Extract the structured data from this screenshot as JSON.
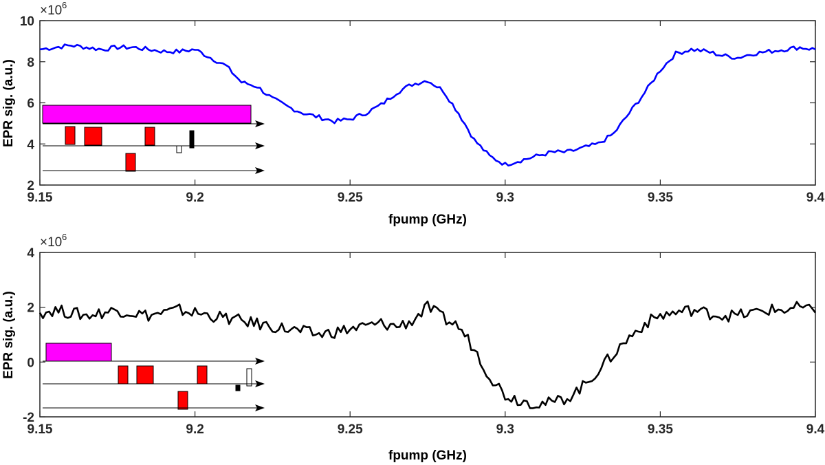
{
  "chart_data": [
    {
      "type": "line",
      "xlabel": "fpump (GHz)",
      "ylabel": "EPR sig. (a.u.)",
      "exponent_label": "×10",
      "exponent_power": "6",
      "xlim": [
        9.15,
        9.4
      ],
      "ylim": [
        2,
        10
      ],
      "xticks": [
        "9.15",
        "9.2",
        "9.25",
        "9.3",
        "9.35",
        "9.4"
      ],
      "yticks": [
        "2",
        "4",
        "6",
        "8",
        "10"
      ],
      "series": [
        {
          "color": "#0000ff",
          "x": [
            9.15,
            9.155,
            9.16,
            9.165,
            9.17,
            9.175,
            9.18,
            9.185,
            9.19,
            9.195,
            9.2,
            9.205,
            9.21,
            9.215,
            9.22,
            9.225,
            9.23,
            9.235,
            9.24,
            9.245,
            9.25,
            9.255,
            9.26,
            9.265,
            9.27,
            9.275,
            9.28,
            9.285,
            9.29,
            9.295,
            9.3,
            9.305,
            9.31,
            9.315,
            9.32,
            9.325,
            9.33,
            9.335,
            9.34,
            9.345,
            9.35,
            9.355,
            9.36,
            9.365,
            9.37,
            9.375,
            9.38,
            9.385,
            9.39,
            9.395,
            9.4
          ],
          "y": [
            8.6,
            8.7,
            8.8,
            8.7,
            8.6,
            8.7,
            8.7,
            8.6,
            8.5,
            8.5,
            8.6,
            8.2,
            7.8,
            7.0,
            6.8,
            6.2,
            5.8,
            5.5,
            5.3,
            5.1,
            5.2,
            5.5,
            5.9,
            6.5,
            6.9,
            7.1,
            6.6,
            5.5,
            4.2,
            3.4,
            3.0,
            3.2,
            3.4,
            3.6,
            3.6,
            3.8,
            4.0,
            4.5,
            5.5,
            6.5,
            7.6,
            8.4,
            8.6,
            8.5,
            8.3,
            8.2,
            8.4,
            8.5,
            8.6,
            8.7,
            8.6
          ]
        }
      ],
      "inset": {
        "top_bar_color": "#ff00ff",
        "pulse_color": "#ff0000",
        "detect_color": "#000000"
      }
    },
    {
      "type": "line",
      "xlabel": "fpump (GHz)",
      "ylabel": "EPR sig. (a.u.)",
      "exponent_label": "×10",
      "exponent_power": "6",
      "xlim": [
        9.15,
        9.4
      ],
      "ylim": [
        -2,
        4
      ],
      "xticks": [
        "9.15",
        "9.2",
        "9.25",
        "9.3",
        "9.35",
        "9.4"
      ],
      "yticks": [
        "-2",
        "0",
        "2",
        "4"
      ],
      "series": [
        {
          "color": "#000000",
          "x": [
            9.15,
            9.155,
            9.16,
            9.165,
            9.17,
            9.175,
            9.18,
            9.185,
            9.19,
            9.195,
            9.2,
            9.205,
            9.21,
            9.215,
            9.22,
            9.225,
            9.23,
            9.235,
            9.24,
            9.245,
            9.25,
            9.255,
            9.26,
            9.265,
            9.27,
            9.275,
            9.28,
            9.285,
            9.29,
            9.295,
            9.3,
            9.305,
            9.31,
            9.315,
            9.32,
            9.325,
            9.33,
            9.335,
            9.34,
            9.345,
            9.35,
            9.355,
            9.36,
            9.365,
            9.37,
            9.375,
            9.38,
            9.385,
            9.39,
            9.395,
            9.4
          ],
          "y": [
            1.8,
            1.9,
            1.8,
            1.7,
            1.8,
            1.9,
            1.8,
            1.7,
            1.8,
            1.9,
            1.8,
            1.7,
            1.6,
            1.5,
            1.4,
            1.3,
            1.2,
            1.1,
            1.0,
            1.1,
            1.2,
            1.3,
            1.4,
            1.3,
            1.5,
            2.0,
            1.6,
            1.3,
            0.5,
            -0.5,
            -1.2,
            -1.4,
            -1.5,
            -1.5,
            -1.3,
            -0.9,
            -0.3,
            0.3,
            0.9,
            1.4,
            1.7,
            1.8,
            1.9,
            1.8,
            1.7,
            1.7,
            1.8,
            1.9,
            1.9,
            2.0,
            1.8
          ]
        }
      ],
      "inset": {
        "top_bar_color": "#ff00ff",
        "pulse_color": "#ff0000",
        "detect_color": "#000000"
      }
    }
  ]
}
